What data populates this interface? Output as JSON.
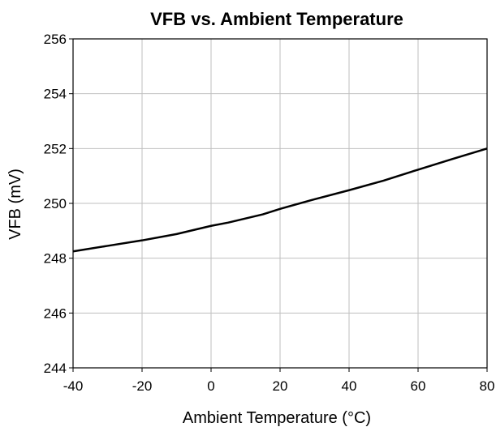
{
  "chart_data": {
    "type": "line",
    "title": "VFB vs. Ambient Temperature",
    "xlabel": "Ambient Temperature (°C)",
    "ylabel": "VFB (mV)",
    "xlim": [
      -40,
      80
    ],
    "ylim": [
      244,
      256
    ],
    "x_ticks": [
      -40,
      -20,
      0,
      20,
      40,
      60,
      80
    ],
    "y_ticks": [
      244,
      246,
      248,
      250,
      252,
      254,
      256
    ],
    "grid": true,
    "series": [
      {
        "x": [
          -40,
          -30,
          -20,
          -10,
          0,
          5,
          15,
          20,
          30,
          40,
          50,
          60,
          70,
          80
        ],
        "y": [
          248.25,
          248.45,
          248.65,
          248.88,
          249.18,
          249.3,
          249.6,
          249.8,
          250.15,
          250.48,
          250.83,
          251.23,
          251.62,
          252.0
        ]
      }
    ]
  }
}
